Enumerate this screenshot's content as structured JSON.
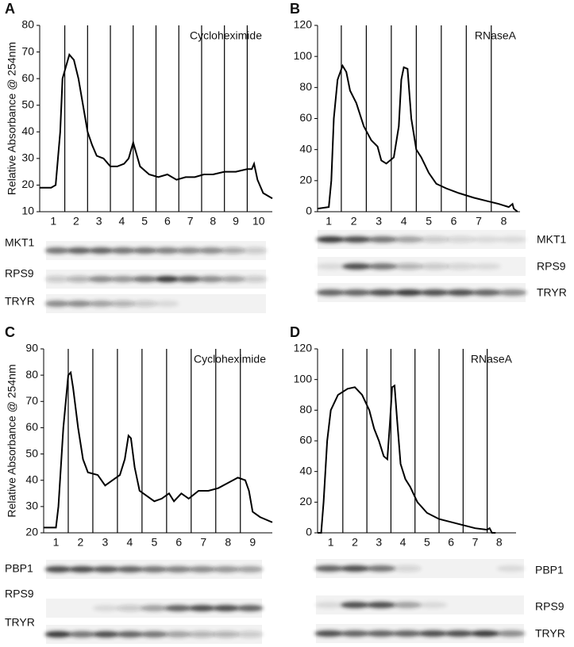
{
  "chart_data": [
    {
      "type": "line",
      "panel": "A",
      "annotation": "Cycloheximide",
      "ylabel": "Relative Absorbance @ 254nm",
      "ylim": [
        10,
        80
      ],
      "yticks": [
        10,
        20,
        30,
        40,
        50,
        60,
        70,
        80
      ],
      "xlim": [
        0.4,
        10.6
      ],
      "color": "#000000",
      "fractions": [
        1,
        2,
        3,
        4,
        5,
        6,
        7,
        8,
        9,
        10
      ],
      "blots": [
        "MKT1",
        "RPS9",
        "TRYR"
      ],
      "x": [
        0.4,
        0.9,
        1.1,
        1.3,
        1.4,
        1.6,
        1.7,
        1.9,
        2.1,
        2.3,
        2.5,
        2.7,
        2.9,
        3.2,
        3.5,
        3.8,
        4.1,
        4.3,
        4.5,
        4.6,
        4.8,
        5.2,
        5.6,
        6.0,
        6.4,
        6.8,
        7.2,
        7.6,
        8.0,
        8.5,
        9.0,
        9.5,
        9.7,
        9.8,
        9.95,
        10.2,
        10.6
      ],
      "values": [
        19,
        19,
        20,
        40,
        60,
        66,
        69,
        67,
        60,
        50,
        40,
        35,
        31,
        30,
        27,
        27,
        28,
        30,
        36,
        33,
        27,
        24,
        23,
        24,
        22,
        23,
        23,
        24,
        24,
        25,
        25,
        26,
        26,
        28,
        22,
        17,
        15
      ]
    },
    {
      "type": "line",
      "panel": "B",
      "annotation": "RNaseA",
      "ylim": [
        0,
        120
      ],
      "yticks": [
        0,
        20,
        40,
        60,
        80,
        100,
        120
      ],
      "xlim": [
        0.55,
        8.65
      ],
      "color": "#000000",
      "fractions": [
        1,
        2,
        3,
        4,
        5,
        6,
        7,
        8
      ],
      "blots": [
        "MKT1",
        "RPS9",
        "TRYR"
      ],
      "x": [
        0.55,
        1.0,
        1.1,
        1.2,
        1.35,
        1.55,
        1.7,
        1.85,
        2.1,
        2.4,
        2.7,
        2.95,
        3.1,
        3.3,
        3.6,
        3.8,
        3.9,
        4.0,
        4.15,
        4.3,
        4.5,
        4.7,
        5.0,
        5.3,
        5.7,
        6.2,
        6.8,
        7.3,
        7.8,
        8.2,
        8.35,
        8.4,
        8.55
      ],
      "values": [
        2,
        3,
        20,
        60,
        85,
        94,
        90,
        78,
        70,
        55,
        46,
        42,
        33,
        31,
        35,
        55,
        85,
        93,
        92,
        60,
        40,
        35,
        25,
        18,
        15,
        12,
        9,
        7,
        5,
        3,
        5,
        2,
        0
      ]
    },
    {
      "type": "line",
      "panel": "C",
      "annotation": "Cycloheximide",
      "ylabel": "Relative Absorbance @ 254nm",
      "ylim": [
        20,
        90
      ],
      "yticks": [
        20,
        30,
        40,
        50,
        60,
        70,
        80,
        90
      ],
      "xlim": [
        0.5,
        9.8
      ],
      "color": "#000000",
      "fractions": [
        1,
        2,
        3,
        4,
        5,
        6,
        7,
        8,
        9
      ],
      "blots": [
        "PBP1",
        "RPS9",
        "TRYR"
      ],
      "x": [
        0.5,
        1.0,
        1.1,
        1.3,
        1.5,
        1.6,
        1.7,
        1.9,
        2.1,
        2.3,
        2.7,
        3.0,
        3.3,
        3.6,
        3.8,
        3.95,
        4.05,
        4.2,
        4.4,
        4.7,
        5.0,
        5.3,
        5.6,
        5.8,
        6.1,
        6.4,
        6.8,
        7.2,
        7.6,
        8.0,
        8.4,
        8.7,
        8.85,
        9.0,
        9.3,
        9.8
      ],
      "values": [
        22,
        22,
        30,
        60,
        80,
        81,
        75,
        60,
        48,
        43,
        42,
        38,
        40,
        42,
        48,
        57,
        56,
        45,
        36,
        34,
        32,
        33,
        35,
        32,
        35,
        33,
        36,
        36,
        37,
        39,
        41,
        40,
        36,
        28,
        26,
        24
      ]
    },
    {
      "type": "line",
      "panel": "D",
      "annotation": "RNaseA",
      "ylim": [
        0,
        120
      ],
      "yticks": [
        0,
        20,
        40,
        60,
        80,
        100,
        120
      ],
      "xlim": [
        0.45,
        8.7
      ],
      "color": "#000000",
      "fractions": [
        1,
        2,
        3,
        4,
        5,
        6,
        7,
        8
      ],
      "blots": [
        "PBP1",
        "RPS9",
        "TRYR"
      ],
      "x": [
        0.45,
        0.6,
        0.7,
        0.85,
        1.0,
        1.3,
        1.7,
        2.0,
        2.3,
        2.6,
        2.8,
        3.0,
        3.2,
        3.35,
        3.45,
        3.55,
        3.65,
        3.75,
        3.9,
        4.1,
        4.3,
        4.6,
        5.0,
        5.5,
        6.0,
        6.5,
        7.0,
        7.5,
        7.6,
        7.7,
        7.85
      ],
      "values": [
        0,
        0,
        20,
        60,
        80,
        90,
        94,
        95,
        90,
        80,
        68,
        60,
        50,
        48,
        70,
        95,
        96,
        75,
        45,
        35,
        30,
        20,
        13,
        9,
        7,
        5,
        3,
        2,
        3,
        0,
        0
      ]
    }
  ]
}
